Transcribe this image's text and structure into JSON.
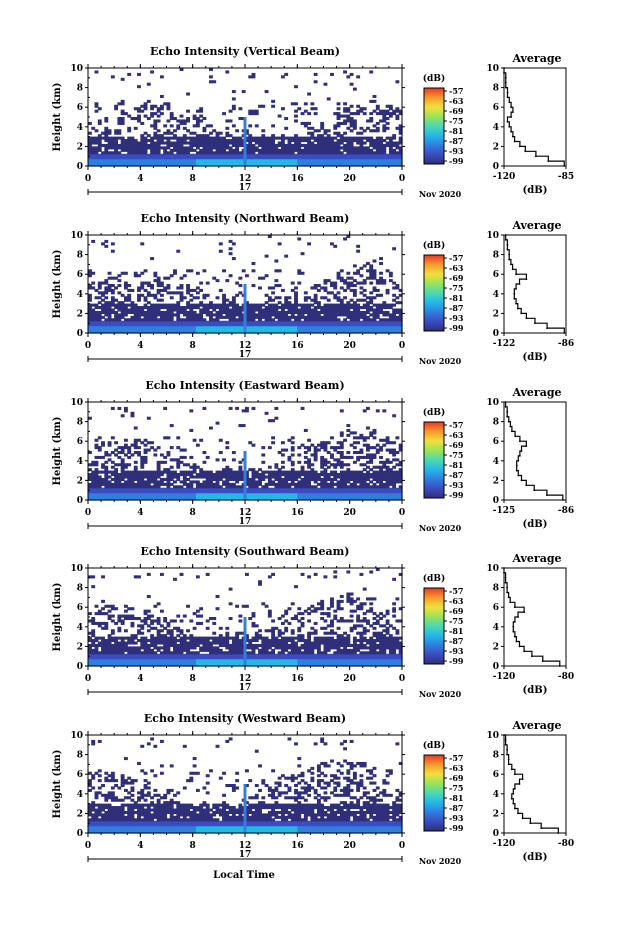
{
  "colors": {
    "background": "#ffffff",
    "axes": "#000000",
    "colormap": [
      "#2f2f7a",
      "#3b4cc0",
      "#2f7fe0",
      "#22b8e8",
      "#4ed8b0",
      "#9be35a",
      "#f2e03a",
      "#f79a2c",
      "#e8382a"
    ]
  },
  "figure": {
    "x_axis_label": "Local Time",
    "day_label": "17",
    "month_year_label": "Nov 2020"
  },
  "chart_data": [
    {
      "type": "heatmap",
      "title": "Echo Intensity (Vertical Beam)",
      "ylabel": "Height (km)",
      "xlim": [
        0,
        24
      ],
      "ylim": [
        0,
        10
      ],
      "xticks": [
        "0",
        "4",
        "8",
        "12",
        "16",
        "20",
        "0"
      ],
      "yticks": [
        "0",
        "2",
        "4",
        "6",
        "8",
        "10"
      ],
      "colorbar": {
        "unit": "(dB)",
        "labels": [
          "-57",
          "-63",
          "-69",
          "-75",
          "-81",
          "-87",
          "-93",
          "-99"
        ]
      },
      "profile": {
        "title": "Average",
        "xlabel": "(dB)",
        "xticks": [
          "-120",
          "-85"
        ],
        "xlim": [
          -120,
          -85
        ],
        "ylim": [
          0,
          10
        ],
        "heights": [
          0,
          0.5,
          1,
          1.5,
          2,
          2.5,
          3,
          3.5,
          4,
          4.5,
          5,
          5.5,
          6,
          6.5,
          7,
          7.5,
          8,
          8.5,
          9,
          9.5,
          10
        ],
        "values": [
          -86,
          -95,
          -102,
          -108,
          -111,
          -114,
          -115,
          -116,
          -117,
          -118,
          -116,
          -115,
          -116,
          -117,
          -118,
          -118,
          -119,
          -119,
          -119,
          -120,
          -120
        ]
      }
    },
    {
      "type": "heatmap",
      "title": "Echo Intensity (Northward Beam)",
      "ylabel": "Height (km)",
      "xlim": [
        0,
        24
      ],
      "ylim": [
        0,
        10
      ],
      "xticks": [
        "0",
        "4",
        "8",
        "12",
        "16",
        "20",
        "0"
      ],
      "yticks": [
        "0",
        "2",
        "4",
        "6",
        "8",
        "10"
      ],
      "colorbar": {
        "unit": "(dB)",
        "labels": [
          "-57",
          "-63",
          "-69",
          "-75",
          "-81",
          "-87",
          "-93",
          "-99"
        ]
      },
      "profile": {
        "title": "Average",
        "xlabel": "(dB)",
        "xticks": [
          "-122",
          "-86"
        ],
        "xlim": [
          -122,
          -86
        ],
        "ylim": [
          0,
          10
        ],
        "heights": [
          0,
          0.5,
          1,
          1.5,
          2,
          2.5,
          3,
          3.5,
          4,
          4.5,
          5,
          5.5,
          6,
          6.5,
          7,
          7.5,
          8,
          8.5,
          9,
          9.5,
          10
        ],
        "values": [
          -87,
          -97,
          -104,
          -109,
          -112,
          -114,
          -115,
          -116,
          -116,
          -115,
          -113,
          -109,
          -115,
          -117,
          -118,
          -119,
          -119,
          -120,
          -120,
          -121,
          -121
        ]
      }
    },
    {
      "type": "heatmap",
      "title": "Echo Intensity (Eastward Beam)",
      "ylabel": "Height (km)",
      "xlim": [
        0,
        24
      ],
      "ylim": [
        0,
        10
      ],
      "xticks": [
        "0",
        "4",
        "8",
        "12",
        "16",
        "20",
        "0"
      ],
      "yticks": [
        "0",
        "2",
        "4",
        "6",
        "8",
        "10"
      ],
      "colorbar": {
        "unit": "(dB)",
        "labels": [
          "-57",
          "-63",
          "-69",
          "-75",
          "-81",
          "-87",
          "-93",
          "-99"
        ]
      },
      "profile": {
        "title": "Average",
        "xlabel": "(dB)",
        "xticks": [
          "-125",
          "-86"
        ],
        "xlim": [
          -125,
          -86
        ],
        "ylim": [
          0,
          10
        ],
        "heights": [
          0,
          0.5,
          1,
          1.5,
          2,
          2.5,
          3,
          3.5,
          4,
          4.5,
          5,
          5.5,
          6,
          6.5,
          7,
          7.5,
          8,
          8.5,
          9,
          9.5,
          10
        ],
        "values": [
          -88,
          -98,
          -106,
          -111,
          -114,
          -116,
          -117,
          -117,
          -116,
          -115,
          -114,
          -111,
          -115,
          -118,
          -120,
          -121,
          -122,
          -123,
          -123,
          -124,
          -124
        ]
      }
    },
    {
      "type": "heatmap",
      "title": "Echo Intensity (Southward Beam)",
      "ylabel": "Height (km)",
      "xlim": [
        0,
        24
      ],
      "ylim": [
        0,
        10
      ],
      "xticks": [
        "0",
        "4",
        "8",
        "12",
        "16",
        "20",
        "0"
      ],
      "yticks": [
        "0",
        "2",
        "4",
        "6",
        "8",
        "10"
      ],
      "colorbar": {
        "unit": "(dB)",
        "labels": [
          "-57",
          "-63",
          "-69",
          "-75",
          "-81",
          "-87",
          "-93",
          "-99"
        ]
      },
      "profile": {
        "title": "Average",
        "xlabel": "(dB)",
        "xticks": [
          "-120",
          "-80"
        ],
        "xlim": [
          -120,
          -80
        ],
        "ylim": [
          0,
          10
        ],
        "heights": [
          0,
          0.5,
          1,
          1.5,
          2,
          2.5,
          3,
          3.5,
          4,
          4.5,
          5,
          5.5,
          6,
          6.5,
          7,
          7.5,
          8,
          8.5,
          9,
          9.5,
          10
        ],
        "values": [
          -84,
          -95,
          -102,
          -107,
          -110,
          -112,
          -113,
          -114,
          -114,
          -113,
          -111,
          -107,
          -113,
          -116,
          -117,
          -118,
          -118,
          -119,
          -119,
          -120,
          -120
        ]
      }
    },
    {
      "type": "heatmap",
      "title": "Echo Intensity (Westward Beam)",
      "ylabel": "Height (km)",
      "xlim": [
        0,
        24
      ],
      "ylim": [
        0,
        10
      ],
      "xticks": [
        "0",
        "4",
        "8",
        "12",
        "16",
        "20",
        "0"
      ],
      "yticks": [
        "0",
        "2",
        "4",
        "6",
        "8",
        "10"
      ],
      "colorbar": {
        "unit": "(dB)",
        "labels": [
          "-57",
          "-63",
          "-69",
          "-75",
          "-81",
          "-87",
          "-93",
          "-99"
        ]
      },
      "profile": {
        "title": "Average",
        "xlabel": "(dB)",
        "xticks": [
          "-120",
          "-80"
        ],
        "xlim": [
          -120,
          -80
        ],
        "ylim": [
          0,
          10
        ],
        "heights": [
          0,
          0.5,
          1,
          1.5,
          2,
          2.5,
          3,
          3.5,
          4,
          4.5,
          5,
          5.5,
          6,
          6.5,
          7,
          7.5,
          8,
          8.5,
          9,
          9.5,
          10
        ],
        "values": [
          -85,
          -96,
          -103,
          -108,
          -111,
          -113,
          -114,
          -115,
          -114,
          -113,
          -110,
          -108,
          -113,
          -115,
          -117,
          -117,
          -118,
          -118,
          -119,
          -119,
          -120
        ]
      }
    }
  ]
}
